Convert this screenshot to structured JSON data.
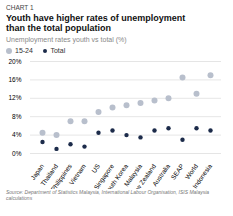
{
  "chart_data": {
    "type": "scatter",
    "annotations": [
      "CHART 1"
    ],
    "title": "Youth have higher rates of unemployment\nthan the total population",
    "subtitle": "Unemployment rates youth vs total (%)",
    "caption": "Source: Department of Statistics Malaysia, International Labour Organisation, ISIS Malaysia\ncalculations",
    "categories": [
      "Japan",
      "Thailand",
      "Philippines",
      "Vietnam",
      "US",
      "Singapore",
      "South Korea",
      "Malaysia",
      "New Zealand",
      "Australia",
      "SEAP",
      "World",
      "Indonesia"
    ],
    "series": [
      {
        "name": "15-24",
        "color": "#b8bfcc",
        "values": [
          4.5,
          4.0,
          7.0,
          7.0,
          9.0,
          10.0,
          10.5,
          11.0,
          11.5,
          12.0,
          16.5,
          13.0,
          17.0
        ]
      },
      {
        "name": "Total",
        "color": "#1c2b4a",
        "values": [
          2.5,
          1.0,
          2.0,
          1.5,
          4.5,
          5.0,
          4.0,
          3.5,
          5.0,
          5.5,
          3.0,
          5.5,
          5.0
        ]
      }
    ],
    "ylim": [
      0,
      20
    ],
    "yticks": [
      {
        "value": 0,
        "label": "0%"
      },
      {
        "value": 4,
        "label": "4%"
      },
      {
        "value": 8,
        "label": "8%"
      },
      {
        "value": 12,
        "label": "12%"
      },
      {
        "value": 16,
        "label": "16%"
      },
      {
        "value": 20,
        "label": "20%"
      }
    ],
    "grid": true,
    "legend": "upper left"
  }
}
